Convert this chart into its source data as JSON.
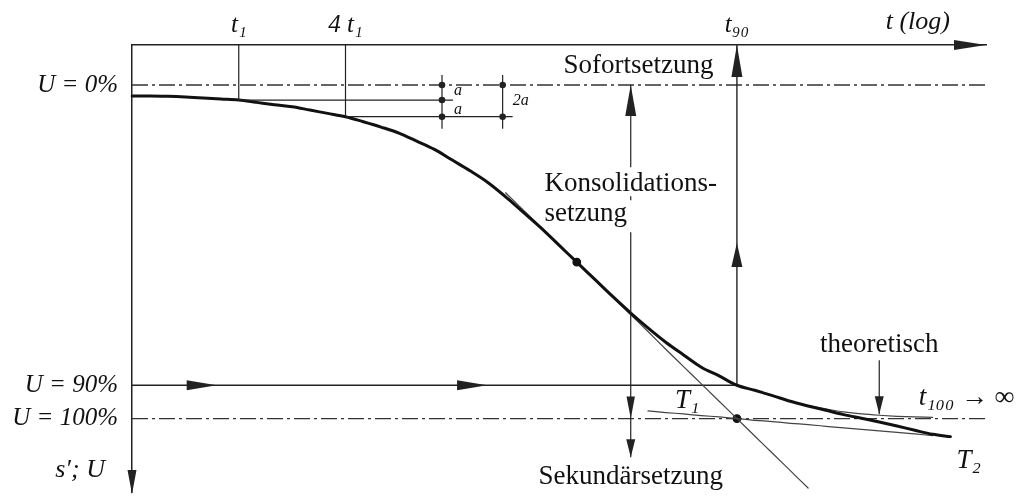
{
  "chart_data": {
    "type": "line",
    "xlabel": "t (log)",
    "ylabel": "s′; U",
    "categories": [
      null,
      null,
      null,
      null,
      null,
      null,
      "t₁",
      null,
      null,
      null,
      null,
      null,
      "4 t₁",
      null,
      null,
      null,
      null,
      null,
      null,
      null,
      null,
      null,
      null,
      null,
      null,
      null,
      null,
      null,
      null,
      null,
      null,
      null,
      null,
      null,
      "t₉₀",
      null,
      null,
      null,
      null,
      null,
      null,
      null,
      null,
      null,
      null,
      null,
      null,
      null,
      null
    ],
    "ylim": [
      122,
      -12
    ],
    "yticks": [
      {
        "value": 0,
        "label": "U = 0%"
      },
      {
        "value": 90,
        "label": "U = 90%"
      },
      {
        "value": 100,
        "label": "U = 100%"
      }
    ],
    "series": [
      {
        "color": "#111111",
        "values": [
          3.3,
          3.3,
          3.4,
          3.6,
          3.9,
          4.2,
          4.5,
          5.2,
          5.9,
          6.5,
          7.5,
          8.5,
          9.5,
          11.0,
          12.6,
          14.4,
          16.8,
          19.3,
          22.5,
          25.7,
          29.2,
          33.5,
          38.2,
          42.9,
          48.0,
          53.1,
          58.2,
          63.3,
          68.2,
          72.8,
          77.1,
          80.9,
          84.6,
          87.2,
          90,
          91.5,
          93.1,
          94.8,
          96.2,
          97.5,
          98.8,
          99.9,
          101.0,
          102.2,
          103.5,
          104.7,
          105.4,
          null,
          null
        ]
      },
      {
        "name": "theoretisch",
        "color": "#444444",
        "values": [
          null,
          null,
          null,
          null,
          null,
          null,
          null,
          null,
          null,
          null,
          null,
          null,
          null,
          null,
          null,
          null,
          null,
          null,
          null,
          null,
          null,
          null,
          null,
          null,
          null,
          null,
          null,
          null,
          null,
          null,
          null,
          null,
          null,
          null,
          null,
          null,
          null,
          94.8,
          96.1,
          97.1,
          98.0,
          98.6,
          99.0,
          99.3,
          99.5,
          99.6,
          null,
          null,
          null
        ]
      },
      {
        "name": "T₁",
        "color": "#444444",
        "values": [
          null,
          null,
          null,
          null,
          null,
          null,
          null,
          null,
          null,
          null,
          null,
          null,
          null,
          null,
          null,
          null,
          null,
          null,
          null,
          null,
          null,
          32.3,
          37.5,
          42.7,
          47.9,
          53.1,
          58.3,
          63.5,
          68.7,
          73.9,
          79.2,
          84.4,
          89.6,
          94.8,
          100.0,
          105.2,
          110.4,
          115.6,
          120.8,
          null,
          null,
          null,
          null,
          null,
          null,
          null,
          null,
          null,
          null
        ]
      },
      {
        "name": "T₂",
        "color": "#444444",
        "values": [
          null,
          null,
          null,
          null,
          null,
          null,
          null,
          null,
          null,
          null,
          null,
          null,
          null,
          null,
          null,
          null,
          null,
          null,
          null,
          null,
          null,
          null,
          null,
          null,
          null,
          null,
          null,
          null,
          null,
          97.7,
          98.2,
          98.6,
          99.1,
          99.5,
          100.0,
          100.5,
          100.9,
          101.4,
          101.8,
          102.3,
          102.8,
          103.2,
          103.7,
          104.1,
          104.6,
          105.1,
          null,
          null,
          null
        ]
      },
      {
        "type": "scatter",
        "marker": "circle",
        "color": "#111111",
        "values": [
          null,
          null,
          null,
          null,
          null,
          null,
          null,
          null,
          null,
          null,
          null,
          null,
          null,
          null,
          null,
          null,
          null,
          null,
          null,
          null,
          null,
          null,
          null,
          null,
          null,
          53.1,
          null,
          null,
          null,
          null,
          null,
          null,
          null,
          null,
          100,
          null,
          null,
          null,
          null,
          null,
          null,
          null,
          null,
          null,
          null,
          null,
          null,
          null,
          null
        ]
      }
    ],
    "ref_lines": [
      {
        "axis": "y",
        "value": 0,
        "line_style": "dashed",
        "color": "#333333"
      },
      {
        "axis": "y",
        "value": 100,
        "line_style": "dashed",
        "color": "#333333"
      },
      {
        "axis": "y",
        "value": 90,
        "color": "#222222"
      },
      {
        "axis": "x",
        "value": "t₉₀",
        "color": "#222222"
      }
    ],
    "annotations": [
      "Sofortsetzung",
      {
        "text": "Konsolidations-\nsetzung",
        "y": 0
      },
      "Sekundärsetzung",
      "t₁₀₀ → ∞",
      {
        "text": "a",
        "x": "t₁",
        "y": 4.5
      },
      "a",
      {
        "text": "2a",
        "x": "4 t₁",
        "y": 9.5
      }
    ]
  }
}
